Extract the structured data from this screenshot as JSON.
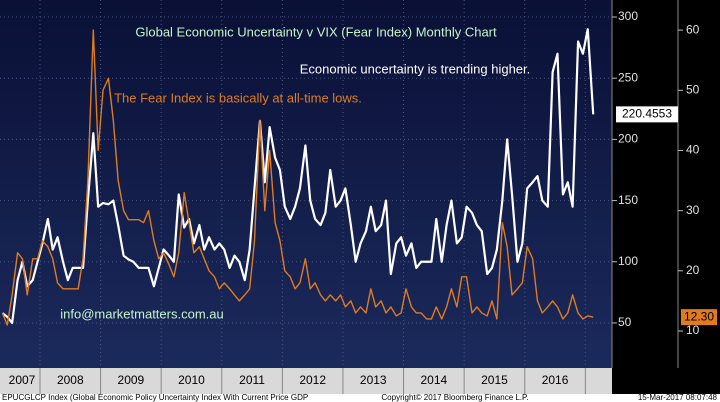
{
  "chart_data": {
    "type": "line",
    "title": "Global Economic Uncertainty v VIX (Fear Index) Monthly Chart",
    "annotations": [
      "Economic uncertainty is trending higher.",
      "The Fear Index is basically at all-time lows.",
      "info@marketmatters.com.au"
    ],
    "footer": {
      "left": "EPUCGLCP Index (Global Economic Policy Uncertainty Index With Current Price GDP",
      "center": "Copyright© 2017 Bloomberg Finance L.P.",
      "right": "15-Mar-2017 08:07:48"
    },
    "x": [
      2007.38,
      2007.46,
      2007.54,
      2007.63,
      2007.71,
      2007.79,
      2007.88,
      2007.96,
      2008.04,
      2008.13,
      2008.21,
      2008.29,
      2008.38,
      2008.46,
      2008.54,
      2008.63,
      2008.71,
      2008.79,
      2008.88,
      2008.96,
      2009.04,
      2009.13,
      2009.21,
      2009.29,
      2009.38,
      2009.46,
      2009.54,
      2009.63,
      2009.71,
      2009.79,
      2009.88,
      2009.96,
      2010.04,
      2010.13,
      2010.21,
      2010.29,
      2010.38,
      2010.46,
      2010.54,
      2010.63,
      2010.71,
      2010.79,
      2010.88,
      2010.96,
      2011.04,
      2011.13,
      2011.21,
      2011.29,
      2011.38,
      2011.46,
      2011.54,
      2011.63,
      2011.71,
      2011.79,
      2011.88,
      2011.96,
      2012.04,
      2012.13,
      2012.21,
      2012.29,
      2012.38,
      2012.46,
      2012.54,
      2012.63,
      2012.71,
      2012.79,
      2012.88,
      2012.96,
      2013.04,
      2013.13,
      2013.21,
      2013.29,
      2013.38,
      2013.46,
      2013.54,
      2013.63,
      2013.71,
      2013.79,
      2013.88,
      2013.96,
      2014.04,
      2014.13,
      2014.21,
      2014.29,
      2014.38,
      2014.46,
      2014.54,
      2014.63,
      2014.71,
      2014.79,
      2014.88,
      2014.96,
      2015.04,
      2015.13,
      2015.21,
      2015.29,
      2015.38,
      2015.46,
      2015.54,
      2015.63,
      2015.71,
      2015.79,
      2015.88,
      2015.96,
      2016.04,
      2016.13,
      2016.21,
      2016.29,
      2016.38,
      2016.46,
      2016.54,
      2016.63,
      2016.71,
      2016.79,
      2016.88,
      2016.96,
      2017.04,
      2017.13
    ],
    "series": [
      {
        "name": "EPUCGLCP Index",
        "color": "#ffffff",
        "axis": "y",
        "last_value_label": "220.4553",
        "values": [
          58,
          55,
          50,
          85,
          100,
          80,
          85,
          100,
          115,
          135,
          110,
          120,
          100,
          85,
          95,
          95,
          95,
          150,
          205,
          145,
          148,
          147,
          150,
          130,
          105,
          102,
          100,
          95,
          95,
          95,
          80,
          95,
          110,
          105,
          100,
          155,
          128,
          135,
          115,
          130,
          110,
          120,
          110,
          115,
          110,
          95,
          105,
          100,
          85,
          110,
          160,
          215,
          165,
          210,
          185,
          175,
          145,
          135,
          145,
          160,
          195,
          150,
          135,
          130,
          140,
          175,
          145,
          150,
          160,
          130,
          100,
          115,
          125,
          145,
          125,
          130,
          150,
          90,
          115,
          120,
          105,
          115,
          95,
          100,
          100,
          100,
          135,
          100,
          130,
          150,
          115,
          120,
          145,
          140,
          130,
          125,
          90,
          95,
          110,
          150,
          200,
          155,
          100,
          115,
          160,
          165,
          170,
          150,
          145,
          255,
          270,
          155,
          165,
          145,
          280,
          270,
          290,
          220.4553
        ]
      },
      {
        "name": "VIX",
        "color": "#e07b20",
        "axis": "y2",
        "last_value_label": "12.30",
        "values": [
          13,
          11,
          16,
          23,
          22,
          16,
          22,
          22,
          25,
          24,
          22,
          18,
          17,
          17,
          17,
          17,
          22,
          35,
          60,
          40,
          50,
          52,
          45,
          35,
          30,
          28.5,
          28.5,
          28.5,
          28,
          30,
          25,
          22,
          23,
          21,
          19,
          23,
          33,
          28,
          23,
          24,
          22,
          20,
          19,
          17,
          18,
          17,
          16,
          15,
          16,
          17,
          25,
          45,
          30,
          40,
          28,
          25,
          20,
          19,
          17,
          18,
          22,
          17,
          18,
          16,
          15,
          16,
          15,
          16,
          14,
          15,
          13,
          14,
          13,
          17,
          14,
          15,
          13,
          14,
          12.5,
          13,
          17,
          14,
          13,
          13,
          12,
          12,
          14,
          12,
          14,
          17,
          14,
          19,
          19,
          13,
          14,
          13,
          12.5,
          15,
          12,
          28,
          24,
          16,
          17,
          18,
          24,
          22,
          15,
          13,
          14,
          15,
          14,
          12,
          13,
          16,
          13,
          12,
          12.5,
          12.3
        ]
      }
    ],
    "xlim": [
      2007.34,
      2017.44
    ],
    "xticks": [
      {
        "value": 2007.5,
        "label": "2007"
      },
      {
        "value": 2008.5,
        "label": "2008"
      },
      {
        "value": 2009.5,
        "label": "2009"
      },
      {
        "value": 2010.5,
        "label": "2010"
      },
      {
        "value": 2011.5,
        "label": "2011"
      },
      {
        "value": 2012.5,
        "label": "2012"
      },
      {
        "value": 2013.5,
        "label": "2013"
      },
      {
        "value": 2014.5,
        "label": "2014"
      },
      {
        "value": 2015.5,
        "label": "2015"
      },
      {
        "value": 2016.5,
        "label": "2016"
      }
    ],
    "xgrid": [
      2008,
      2009,
      2010,
      2011,
      2012,
      2013,
      2014,
      2015,
      2016,
      2017
    ],
    "ylim": [
      13.2,
      313.9
    ],
    "yticks": [
      50,
      100,
      150,
      200,
      250,
      300
    ],
    "y2lim": [
      3.85,
      65
    ],
    "y2ticks": [
      10,
      20,
      30,
      40,
      50,
      60
    ],
    "grid": true
  }
}
